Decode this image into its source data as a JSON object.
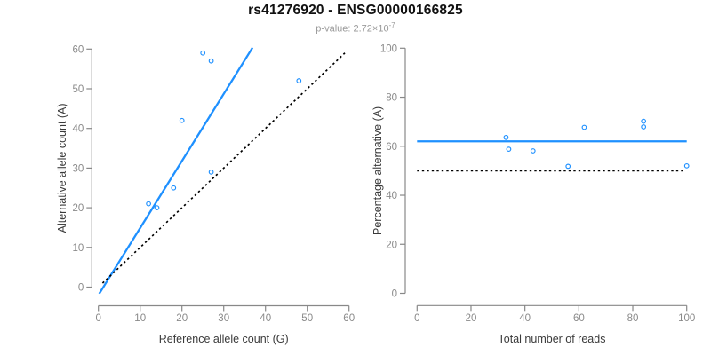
{
  "header": {
    "title": "rs41276920 - ENSG00000166825",
    "subtitle_prefix": "p-value: 2.72×10",
    "subtitle_exponent": "-7"
  },
  "colors": {
    "accent_blue": "#1e90ff",
    "dotted_black": "#000000",
    "axis_gray": "#888888",
    "tick_label_gray": "#8a8a8a",
    "axis_title_dark": "#3a3a3a",
    "title_color": "#111111",
    "subtitle_gray": "#9a9a9a",
    "background": "#ffffff"
  },
  "chart_data": [
    {
      "type": "scatter",
      "name": "allele-counts",
      "xlabel": "Reference allele count (G)",
      "ylabel": "Alternative allele count (A)",
      "xlim": [
        0,
        60
      ],
      "ylim": [
        0,
        60
      ],
      "xticks": [
        0,
        10,
        20,
        30,
        40,
        50,
        60
      ],
      "yticks": [
        0,
        10,
        20,
        30,
        40,
        50,
        60
      ],
      "grid": false,
      "legend": "none",
      "points": [
        [
          12,
          21
        ],
        [
          14,
          20
        ],
        [
          18,
          25
        ],
        [
          20,
          42
        ],
        [
          25,
          59
        ],
        [
          27,
          57
        ],
        [
          27,
          29
        ],
        [
          48,
          52
        ]
      ],
      "lines": [
        {
          "name": "fit-line",
          "style": "solid",
          "color": "#1e90ff",
          "slope": 1.69,
          "intercept": -2.0,
          "x_range": [
            0.2,
            36.9
          ]
        },
        {
          "name": "identity-line",
          "style": "dotted",
          "color": "#000000",
          "slope": 1,
          "intercept": 0,
          "x_range": [
            1,
            59
          ]
        }
      ]
    },
    {
      "type": "scatter",
      "name": "percentage-vs-reads",
      "xlabel": "Total number of reads",
      "ylabel": "Percentage alternative (A)",
      "xlim": [
        0,
        100
      ],
      "ylim": [
        0,
        100
      ],
      "xticks": [
        0,
        20,
        40,
        60,
        80,
        100
      ],
      "yticks": [
        0,
        20,
        40,
        60,
        80,
        100
      ],
      "grid": false,
      "legend": "none",
      "points": [
        [
          33,
          63.6
        ],
        [
          34,
          58.8
        ],
        [
          43,
          58.1
        ],
        [
          56,
          51.8
        ],
        [
          62,
          67.7
        ],
        [
          84,
          70.2
        ],
        [
          84,
          67.9
        ],
        [
          100,
          52
        ]
      ],
      "lines": [
        {
          "name": "mean-line",
          "style": "solid",
          "color": "#1e90ff",
          "slope": 0,
          "intercept": 62,
          "x_range": [
            0,
            100
          ]
        },
        {
          "name": "reference-line",
          "style": "dotted",
          "color": "#000000",
          "slope": 0,
          "intercept": 50,
          "x_range": [
            0,
            99.5
          ]
        }
      ]
    }
  ]
}
